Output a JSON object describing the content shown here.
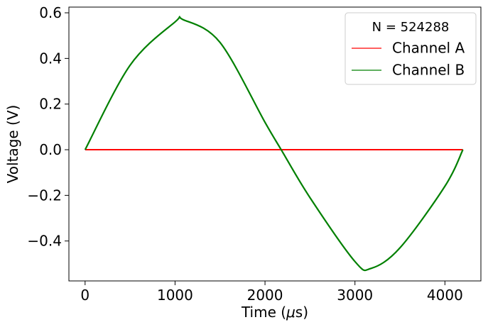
{
  "chart_data": {
    "type": "line",
    "title": "",
    "xlabel": "Time (μs)",
    "ylabel": "Voltage (V)",
    "xlim": [
      -180,
      4400
    ],
    "ylim": [
      -0.575,
      0.625
    ],
    "xticks": [
      0,
      1000,
      2000,
      3000,
      4000
    ],
    "yticks": [
      -0.4,
      -0.2,
      0.0,
      0.2,
      0.4,
      0.6
    ],
    "ytick_labels": [
      "−0.4",
      "−0.2",
      "0.0",
      "0.2",
      "0.4",
      "0.6"
    ],
    "grid": false,
    "legend": {
      "title": "N = 524288",
      "placement": "top-right"
    },
    "series": [
      {
        "name": "Channel A",
        "color": "#ff0000",
        "x": [
          0,
          4200
        ],
        "y": [
          0.0,
          0.0
        ]
      },
      {
        "name": "Channel B",
        "color": "#008000",
        "x": [
          0,
          500,
          1000,
          1090,
          1500,
          2000,
          2180,
          2500,
          3000,
          3180,
          3500,
          4000,
          4200
        ],
        "y": [
          0.0,
          0.37,
          0.56,
          0.57,
          0.47,
          0.12,
          0.0,
          -0.21,
          -0.49,
          -0.52,
          -0.43,
          -0.16,
          0.0
        ]
      }
    ]
  }
}
